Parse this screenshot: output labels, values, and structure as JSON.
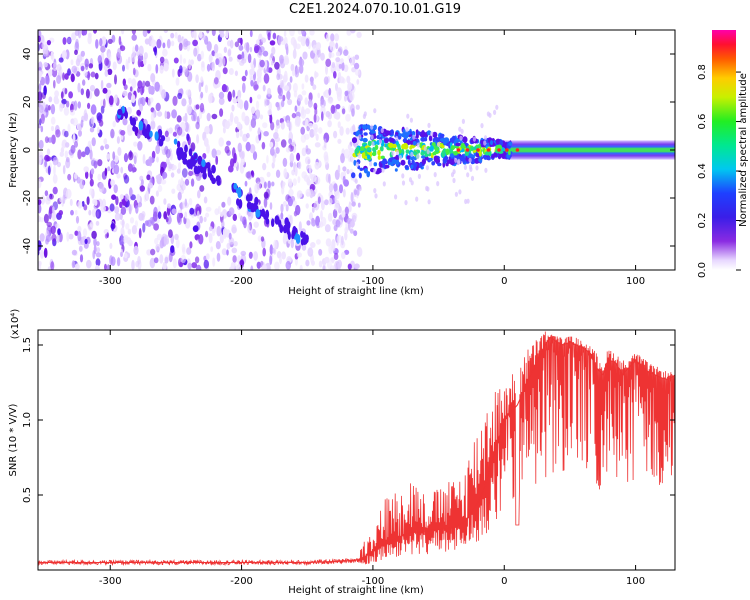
{
  "title": "C2E1.2024.070.10.01.G19",
  "chart_data": [
    {
      "type": "heatmap",
      "xlabel": "Height of straight line (km)",
      "ylabel": "Frequency (Hz)",
      "xlim": [
        -355,
        130
      ],
      "ylim": [
        -50,
        50
      ],
      "x_ticks": [
        -300,
        -200,
        -100,
        0,
        100
      ],
      "x_tick_labels": [
        "-300",
        "-200",
        "-100",
        "0",
        "100"
      ],
      "y_ticks": [
        -40,
        -20,
        0,
        20,
        40
      ],
      "y_tick_labels": [
        "-40",
        "-20",
        "0",
        "20",
        "40"
      ],
      "colorbar": {
        "label": "Normalized spectral amplitude",
        "range": [
          0,
          0.97
        ],
        "ticks": [
          0,
          0.2,
          0.4,
          0.6,
          0.8
        ],
        "tick_labels": [
          "0.0",
          "0.2",
          "0.4",
          "0.6",
          "0.8"
        ],
        "colormap": "rainbow (white-violet-blue-cyan-green-yellow-red-magenta)"
      },
      "regions": [
        {
          "name": "noise",
          "x_range": [
            -355,
            -110
          ],
          "freq_range": [
            -50,
            50
          ]
        },
        {
          "name": "diagonal trace",
          "points": [
            [
              -300,
              18
            ],
            [
              -240,
              -3
            ],
            [
              -200,
              -20
            ],
            [
              -150,
              -38
            ]
          ]
        },
        {
          "name": "signal band",
          "x_range": [
            -115,
            130
          ],
          "freq_range": [
            -5,
            5
          ],
          "center_freq": 0
        }
      ],
      "grid": false
    },
    {
      "type": "line",
      "xlabel": "Height of straight line (km)",
      "ylabel": "SNR (10 * V/V)",
      "y_multiplier": "(x10⁴)",
      "xlim": [
        -355,
        130
      ],
      "ylim": [
        0,
        1.6
      ],
      "x_ticks": [
        -300,
        -200,
        -100,
        0,
        100
      ],
      "x_tick_labels": [
        "-300",
        "-200",
        "-100",
        "0",
        "100"
      ],
      "y_ticks": [
        0.5,
        1.0,
        1.5
      ],
      "y_tick_labels": [
        "0.5",
        "1.0",
        "1.5"
      ],
      "color": "#ee3333",
      "series": [
        {
          "x": [
            -355,
            -300,
            -250,
            -200,
            -150,
            -120,
            -110,
            -100,
            -90,
            -80,
            -70,
            -60,
            -50,
            -40,
            -30,
            -20,
            -15,
            -10,
            -5,
            0,
            5,
            10,
            15,
            20,
            25,
            30,
            35,
            40,
            45,
            50,
            55,
            60,
            65,
            70,
            75,
            80,
            85,
            90,
            95,
            100,
            105,
            110,
            115,
            120,
            125,
            130
          ],
          "y": [
            0.05,
            0.05,
            0.05,
            0.05,
            0.05,
            0.06,
            0.07,
            0.12,
            0.18,
            0.22,
            0.25,
            0.26,
            0.27,
            0.28,
            0.32,
            0.45,
            0.55,
            0.7,
            0.85,
            1.0,
            1.05,
            1.1,
            1.2,
            1.3,
            1.38,
            1.48,
            1.55,
            1.52,
            1.5,
            1.52,
            1.5,
            1.48,
            1.45,
            1.35,
            1.3,
            1.4,
            1.38,
            1.3,
            1.35,
            1.4,
            1.35,
            1.32,
            1.3,
            1.28,
            1.27,
            1.3
          ],
          "envelope": [
            0.02,
            0.12,
            0.08,
            0.07,
            0.07,
            0.08,
            0.15,
            0.3,
            0.5,
            0.55,
            0.65,
            0.5,
            0.55,
            0.6,
            0.7,
            1.0,
            1.15,
            1.25,
            1.25,
            1.2,
            1.3,
            1.35,
            1.45,
            1.5,
            1.55,
            1.6,
            1.58,
            1.56,
            1.55,
            1.56,
            1.55,
            1.52,
            1.5,
            1.45,
            1.42,
            1.48,
            1.45,
            1.4,
            1.42,
            1.45,
            1.42,
            1.38,
            1.36,
            1.34,
            1.32,
            1.32
          ]
        }
      ],
      "grid": false
    }
  ]
}
